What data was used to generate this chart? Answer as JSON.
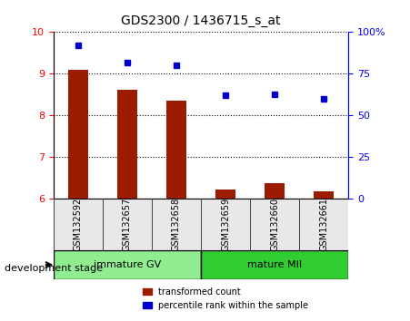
{
  "title": "GDS2300 / 1436715_s_at",
  "samples": [
    "GSM132592",
    "GSM132657",
    "GSM132658",
    "GSM132659",
    "GSM132660",
    "GSM132661"
  ],
  "transformed_count": [
    9.1,
    8.62,
    8.35,
    6.22,
    6.38,
    6.18
  ],
  "percentile_rank": [
    92,
    82,
    80,
    62,
    63,
    60
  ],
  "bar_color": "#9B1C00",
  "dot_color": "#0000CC",
  "ylim_left": [
    6,
    10
  ],
  "ylim_right": [
    0,
    100
  ],
  "yticks_left": [
    6,
    7,
    8,
    9,
    10
  ],
  "yticks_right": [
    0,
    25,
    50,
    75,
    100
  ],
  "groups": [
    {
      "label": "immature GV",
      "indices": [
        0,
        1,
        2
      ],
      "color": "#90EE90"
    },
    {
      "label": "mature MII",
      "indices": [
        3,
        4,
        5
      ],
      "color": "#32CD32"
    }
  ],
  "group_label_prefix": "development stage",
  "legend_items": [
    {
      "label": "transformed count",
      "color": "#9B1C00",
      "marker": "s"
    },
    {
      "label": "percentile rank within the sample",
      "color": "#0000CC",
      "marker": "s"
    }
  ],
  "background_color": "#E8E8E8",
  "plot_bg_color": "#FFFFFF",
  "bar_width": 0.4,
  "grid_style": "dotted"
}
